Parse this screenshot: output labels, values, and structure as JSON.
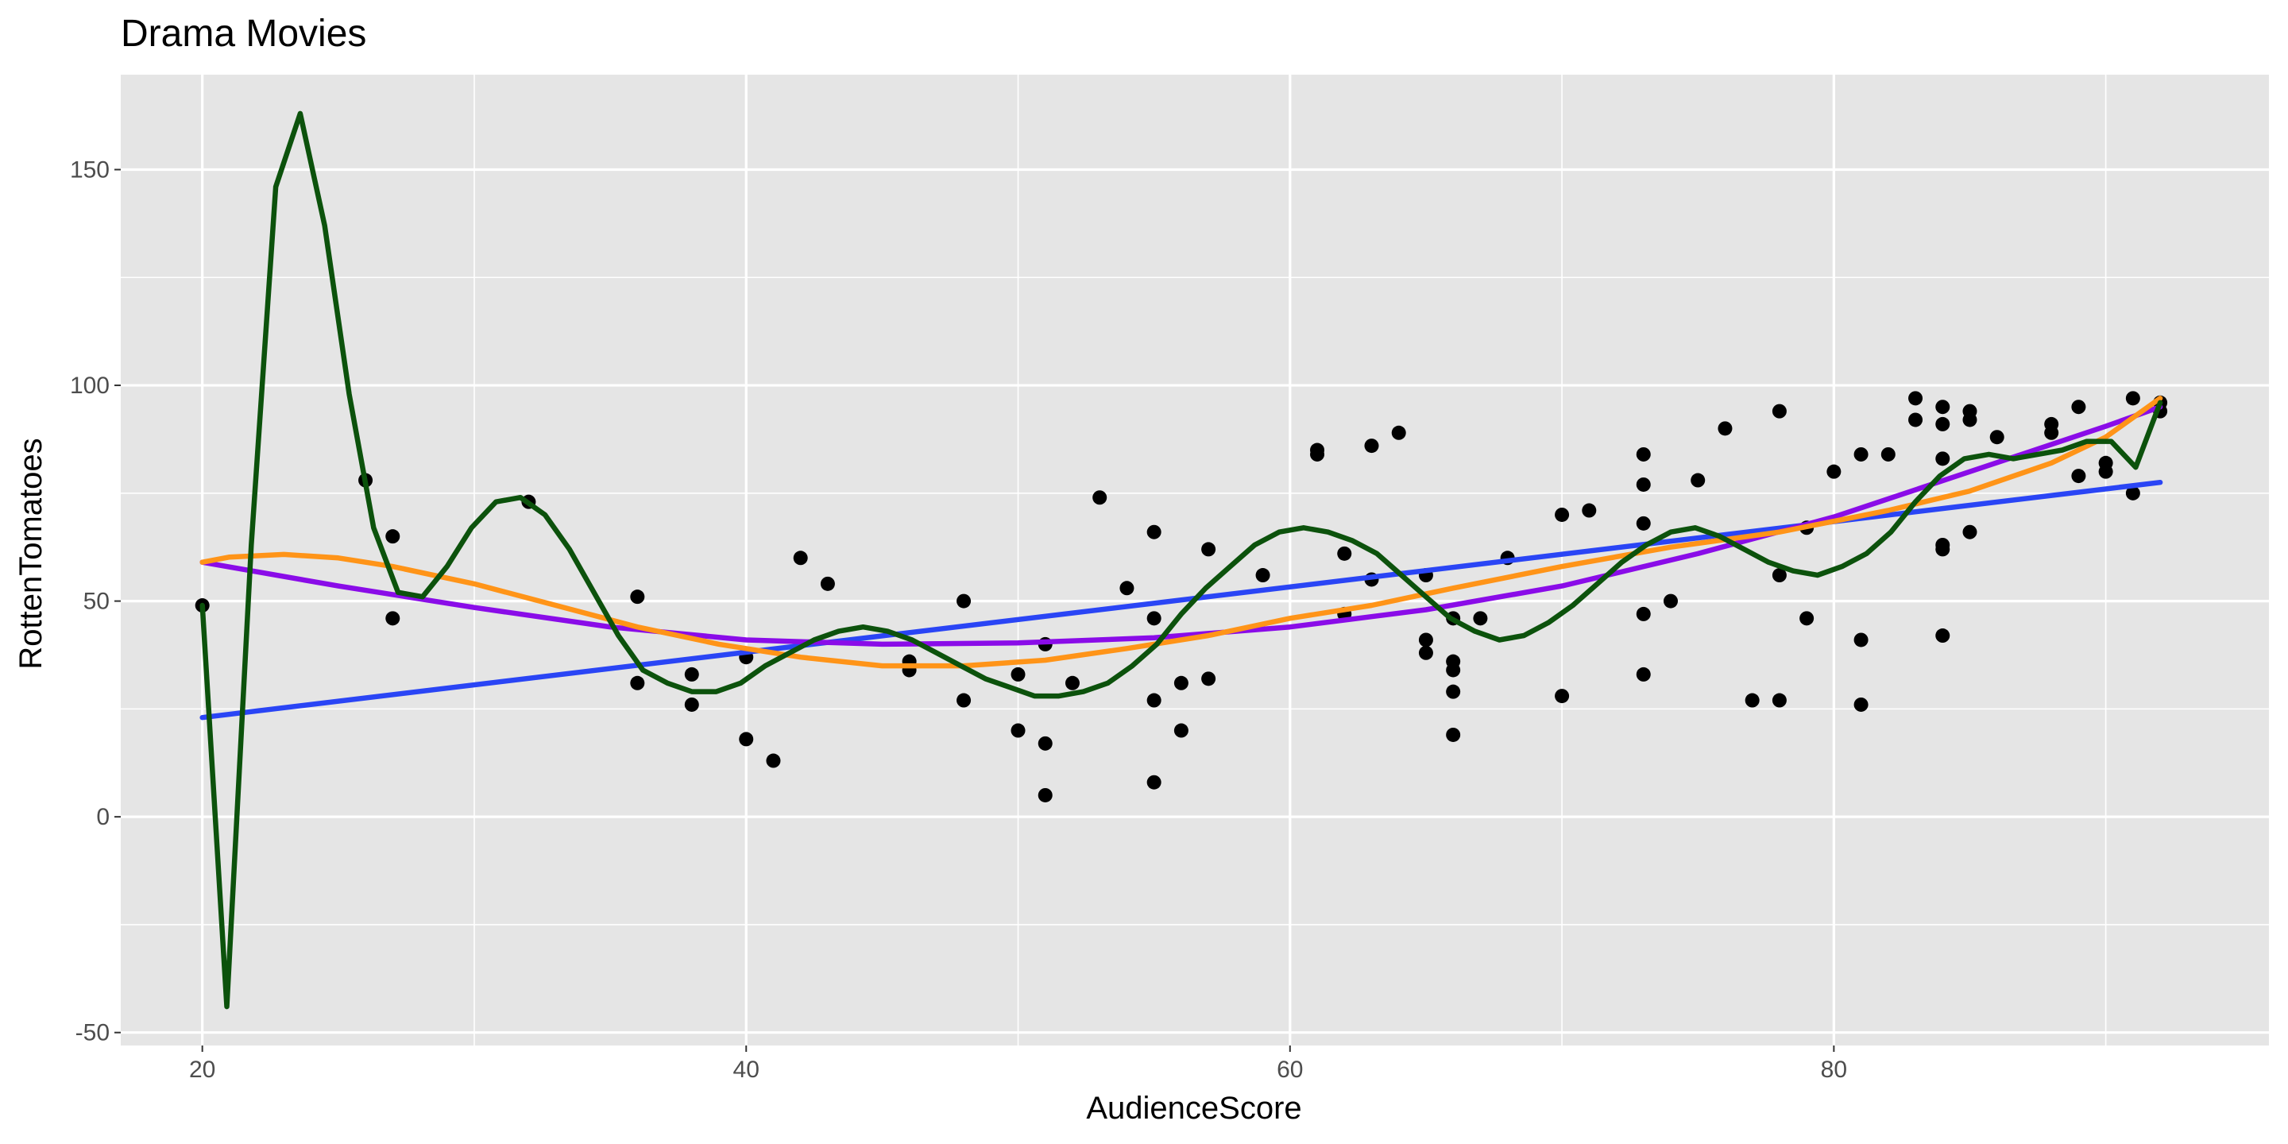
{
  "chart_data": {
    "type": "scatter",
    "title": "Drama Movies",
    "xlabel": "AudienceScore",
    "ylabel": "RottenTomatoes",
    "xlim": [
      17,
      96
    ],
    "ylim": [
      -53,
      172
    ],
    "x_ticks": [
      20,
      40,
      60,
      80
    ],
    "y_ticks": [
      -50,
      0,
      50,
      100,
      150
    ],
    "x_tick_labels": [
      "20",
      "40",
      "60",
      "80"
    ],
    "y_tick_labels": [
      "-50",
      "0",
      "50",
      "100",
      "150"
    ],
    "grid": true,
    "legend": "none",
    "colors": {
      "panel": "#E5E5E5",
      "grid": "#FFFFFF",
      "points": "#000000",
      "linear": "#2A45F5",
      "quadratic": "#8A0CE8",
      "loess": "#FF9418",
      "spline": "#0C520C"
    },
    "points": [
      {
        "x": 20,
        "y": 49
      },
      {
        "x": 26,
        "y": 78
      },
      {
        "x": 27,
        "y": 65
      },
      {
        "x": 27,
        "y": 46
      },
      {
        "x": 32,
        "y": 73
      },
      {
        "x": 36,
        "y": 51
      },
      {
        "x": 36,
        "y": 31
      },
      {
        "x": 38,
        "y": 33
      },
      {
        "x": 38,
        "y": 26
      },
      {
        "x": 40,
        "y": 37
      },
      {
        "x": 40,
        "y": 18
      },
      {
        "x": 41,
        "y": 13
      },
      {
        "x": 42,
        "y": 60
      },
      {
        "x": 43,
        "y": 54
      },
      {
        "x": 46,
        "y": 36
      },
      {
        "x": 46,
        "y": 34
      },
      {
        "x": 48,
        "y": 50
      },
      {
        "x": 48,
        "y": 27
      },
      {
        "x": 50,
        "y": 33
      },
      {
        "x": 50,
        "y": 20
      },
      {
        "x": 51,
        "y": 40
      },
      {
        "x": 51,
        "y": 17
      },
      {
        "x": 51,
        "y": 5
      },
      {
        "x": 52,
        "y": 31
      },
      {
        "x": 53,
        "y": 74
      },
      {
        "x": 54,
        "y": 53
      },
      {
        "x": 55,
        "y": 66
      },
      {
        "x": 55,
        "y": 46
      },
      {
        "x": 55,
        "y": 27
      },
      {
        "x": 55,
        "y": 8
      },
      {
        "x": 56,
        "y": 31
      },
      {
        "x": 56,
        "y": 20
      },
      {
        "x": 57,
        "y": 62
      },
      {
        "x": 57,
        "y": 32
      },
      {
        "x": 59,
        "y": 56
      },
      {
        "x": 61,
        "y": 85
      },
      {
        "x": 61,
        "y": 84
      },
      {
        "x": 62,
        "y": 61
      },
      {
        "x": 62,
        "y": 47
      },
      {
        "x": 63,
        "y": 86
      },
      {
        "x": 63,
        "y": 55
      },
      {
        "x": 64,
        "y": 89
      },
      {
        "x": 65,
        "y": 56
      },
      {
        "x": 65,
        "y": 41
      },
      {
        "x": 65,
        "y": 38
      },
      {
        "x": 66,
        "y": 46
      },
      {
        "x": 66,
        "y": 36
      },
      {
        "x": 66,
        "y": 34
      },
      {
        "x": 66,
        "y": 29
      },
      {
        "x": 66,
        "y": 19
      },
      {
        "x": 67,
        "y": 46
      },
      {
        "x": 68,
        "y": 60
      },
      {
        "x": 70,
        "y": 70
      },
      {
        "x": 70,
        "y": 28
      },
      {
        "x": 71,
        "y": 71
      },
      {
        "x": 73,
        "y": 84
      },
      {
        "x": 73,
        "y": 77
      },
      {
        "x": 73,
        "y": 68
      },
      {
        "x": 73,
        "y": 47
      },
      {
        "x": 73,
        "y": 33
      },
      {
        "x": 74,
        "y": 50
      },
      {
        "x": 75,
        "y": 78
      },
      {
        "x": 76,
        "y": 90
      },
      {
        "x": 77,
        "y": 27
      },
      {
        "x": 78,
        "y": 94
      },
      {
        "x": 78,
        "y": 56
      },
      {
        "x": 78,
        "y": 27
      },
      {
        "x": 79,
        "y": 67
      },
      {
        "x": 79,
        "y": 46
      },
      {
        "x": 80,
        "y": 80
      },
      {
        "x": 81,
        "y": 84
      },
      {
        "x": 81,
        "y": 41
      },
      {
        "x": 81,
        "y": 26
      },
      {
        "x": 82,
        "y": 84
      },
      {
        "x": 83,
        "y": 97
      },
      {
        "x": 83,
        "y": 92
      },
      {
        "x": 84,
        "y": 95
      },
      {
        "x": 84,
        "y": 91
      },
      {
        "x": 84,
        "y": 83
      },
      {
        "x": 84,
        "y": 63
      },
      {
        "x": 84,
        "y": 62
      },
      {
        "x": 84,
        "y": 42
      },
      {
        "x": 85,
        "y": 94
      },
      {
        "x": 85,
        "y": 92
      },
      {
        "x": 85,
        "y": 66
      },
      {
        "x": 86,
        "y": 88
      },
      {
        "x": 88,
        "y": 91
      },
      {
        "x": 88,
        "y": 89
      },
      {
        "x": 89,
        "y": 95
      },
      {
        "x": 89,
        "y": 79
      },
      {
        "x": 90,
        "y": 82
      },
      {
        "x": 90,
        "y": 80
      },
      {
        "x": 91,
        "y": 97
      },
      {
        "x": 91,
        "y": 75
      },
      {
        "x": 92,
        "y": 96
      },
      {
        "x": 92,
        "y": 94
      }
    ],
    "series": [
      {
        "color_key": "linear",
        "x": [
          20,
          92
        ],
        "y": [
          23,
          77.5
        ]
      },
      {
        "color_key": "quadratic",
        "x": [
          20,
          25,
          30,
          35,
          40,
          45,
          50,
          55,
          60,
          65,
          70,
          75,
          80,
          85,
          90,
          92
        ],
        "y": [
          59,
          53.5,
          48.5,
          44,
          41,
          40,
          40.3,
          41.5,
          44,
          48,
          53.5,
          61,
          69.5,
          80,
          90.5,
          95
        ]
      },
      {
        "color_key": "loess",
        "x": [
          20,
          21,
          23,
          25,
          27,
          30,
          33,
          36,
          39,
          42,
          45,
          48,
          51,
          54,
          57,
          60,
          63,
          66,
          70,
          74,
          78,
          82,
          85,
          88,
          90,
          92
        ],
        "y": [
          59,
          60.2,
          60.8,
          60,
          58,
          54,
          49,
          44,
          40,
          37,
          35,
          35,
          36.3,
          39,
          42,
          46,
          49,
          53,
          58,
          62.5,
          66,
          71,
          75.5,
          82,
          88,
          97
        ]
      },
      {
        "color_key": "spline",
        "x": [
          20,
          20.9,
          21.8,
          22.7,
          23.6,
          24.5,
          25.4,
          26.3,
          27.2,
          28.1,
          29.0,
          29.9,
          30.8,
          31.7,
          32.6,
          33.5,
          34.4,
          35.3,
          36.2,
          37.1,
          38.0,
          38.9,
          39.8,
          40.7,
          41.6,
          42.5,
          43.4,
          44.3,
          45.2,
          46.1,
          47.0,
          47.9,
          48.8,
          49.7,
          50.6,
          51.5,
          52.4,
          53.3,
          54.2,
          55.1,
          56.0,
          56.9,
          57.8,
          58.7,
          59.6,
          60.5,
          61.4,
          62.3,
          63.2,
          64.1,
          65.0,
          65.9,
          66.8,
          67.7,
          68.6,
          69.5,
          70.4,
          71.3,
          72.2,
          73.1,
          74.0,
          74.9,
          75.8,
          76.7,
          77.6,
          78.5,
          79.4,
          80.3,
          81.2,
          82.1,
          83.0,
          83.9,
          84.8,
          85.7,
          86.6,
          87.5,
          88.4,
          89.3,
          90.2,
          91.1,
          92.0
        ],
        "y": [
          49,
          -44,
          63,
          146,
          163,
          137,
          98,
          67,
          52,
          51,
          58,
          67,
          73,
          74,
          70,
          62,
          52,
          42,
          34,
          31,
          29,
          29,
          31,
          35,
          38,
          41,
          43,
          44,
          43,
          41,
          38,
          35,
          32,
          30,
          28,
          28,
          29,
          31,
          35,
          40,
          47,
          53,
          58,
          63,
          66,
          67,
          66,
          64,
          61,
          56,
          51,
          46,
          43,
          41,
          42,
          45,
          49,
          54,
          59,
          63,
          66,
          67,
          65,
          62,
          59,
          57,
          56,
          58,
          61,
          66,
          73,
          79,
          83,
          84,
          83,
          84,
          85,
          87,
          87,
          81,
          96
        ]
      }
    ]
  }
}
